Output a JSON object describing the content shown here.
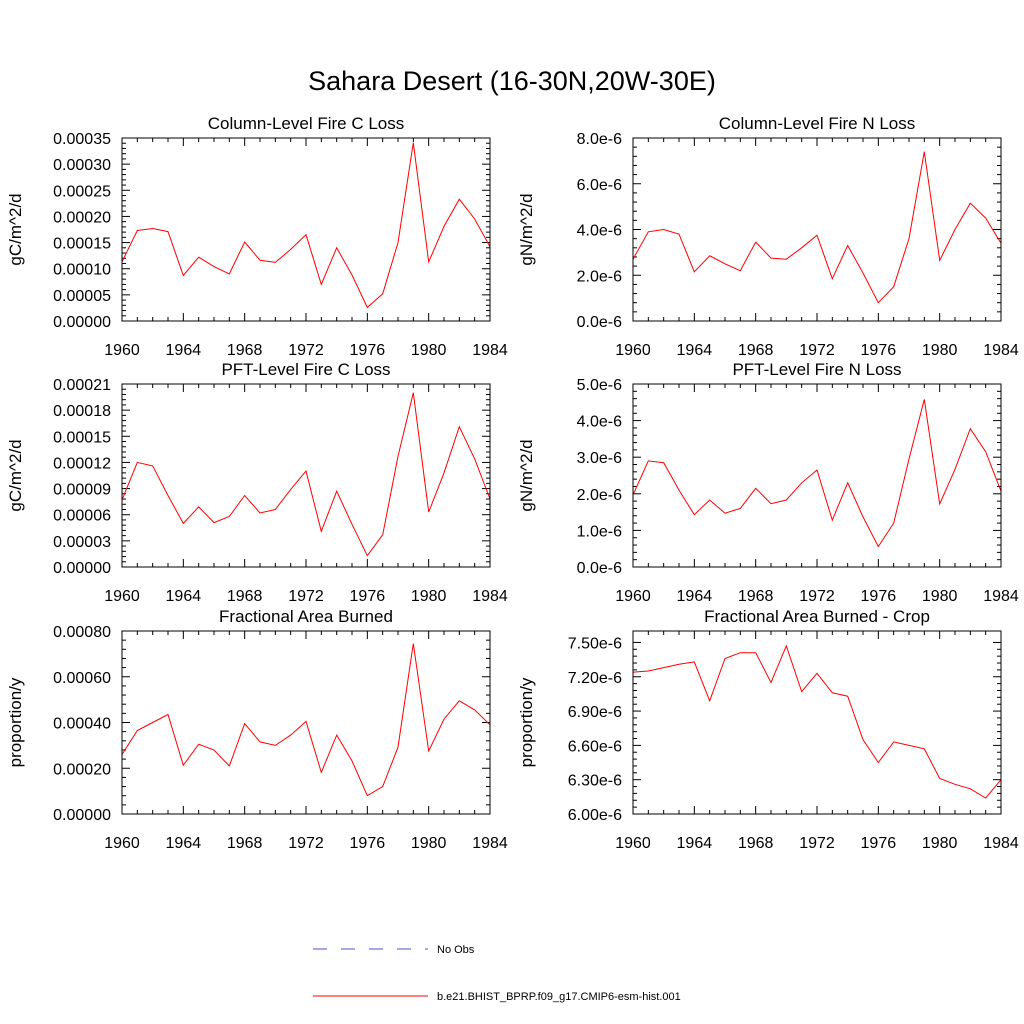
{
  "figure": {
    "title": "Sahara Desert (16-30N,20W-30E)",
    "line_color": "#ff0000",
    "obs_color": "#4a52c8",
    "legend": {
      "obs_label": "No Obs",
      "model_label": "b.e21.BHIST_BPRP.f09_g17.CMIP6-esm-hist.001"
    }
  },
  "chart_data": [
    {
      "type": "line",
      "title": "Column-Level Fire C Loss",
      "ylabel": "gC/m^2/d",
      "xlim": [
        1960,
        1984
      ],
      "ylim": [
        0,
        0.00035
      ],
      "yticks": [
        0,
        5e-05,
        0.0001,
        0.00015,
        0.0002,
        0.00025,
        0.0003,
        0.00035
      ],
      "ytick_labels": [
        "0.00000",
        "0.00005",
        "0.00010",
        "0.00015",
        "0.00020",
        "0.00025",
        "0.00030",
        "0.00035"
      ],
      "xticks": [
        1960,
        1964,
        1968,
        1972,
        1976,
        1980,
        1984
      ],
      "x": [
        1960,
        1961,
        1962,
        1963,
        1964,
        1965,
        1966,
        1967,
        1968,
        1969,
        1970,
        1971,
        1972,
        1973,
        1974,
        1975,
        1976,
        1977,
        1978,
        1979,
        1980,
        1981,
        1982,
        1983,
        1984
      ],
      "series": [
        {
          "values": [
            0.000113,
            0.000173,
            0.000177,
            0.000171,
            8.7e-05,
            0.000122,
            0.000104,
            9e-05,
            0.000151,
            0.000116,
            0.000112,
            0.000137,
            0.000165,
            7e-05,
            0.00014,
            8.8e-05,
            2.6e-05,
            5.2e-05,
            0.00015,
            0.000341,
            0.000113,
            0.000181,
            0.000233,
            0.000195,
            0.000142
          ]
        }
      ]
    },
    {
      "type": "line",
      "title": "Column-Level Fire N Loss",
      "ylabel": "gN/m^2/d",
      "xlim": [
        1960,
        1984
      ],
      "ylim": [
        0,
        8e-06
      ],
      "yticks": [
        0,
        2e-06,
        4e-06,
        6e-06,
        8e-06
      ],
      "ytick_labels": [
        "0.0e-6",
        "2.0e-6",
        "4.0e-6",
        "6.0e-6",
        "8.0e-6"
      ],
      "xticks": [
        1960,
        1964,
        1968,
        1972,
        1976,
        1980,
        1984
      ],
      "x": [
        1960,
        1961,
        1962,
        1963,
        1964,
        1965,
        1966,
        1967,
        1968,
        1969,
        1970,
        1971,
        1972,
        1973,
        1974,
        1975,
        1976,
        1977,
        1978,
        1979,
        1980,
        1981,
        1982,
        1983,
        1984
      ],
      "series": [
        {
          "values": [
            2.7e-06,
            3.9e-06,
            4e-06,
            3.8e-06,
            2.15e-06,
            2.85e-06,
            2.5e-06,
            2.2e-06,
            3.45e-06,
            2.75e-06,
            2.7e-06,
            3.2e-06,
            3.75e-06,
            1.85e-06,
            3.3e-06,
            2.1e-06,
            8e-07,
            1.5e-06,
            3.6e-06,
            7.4e-06,
            2.65e-06,
            4e-06,
            5.15e-06,
            4.5e-06,
            3.4e-06
          ]
        }
      ]
    },
    {
      "type": "line",
      "title": "PFT-Level Fire C Loss",
      "ylabel": "gC/m^2/d",
      "xlim": [
        1960,
        1984
      ],
      "ylim": [
        0,
        0.00021
      ],
      "yticks": [
        0,
        3e-05,
        6e-05,
        9e-05,
        0.00012,
        0.00015,
        0.00018,
        0.00021
      ],
      "ytick_labels": [
        "0.00000",
        "0.00003",
        "0.00006",
        "0.00009",
        "0.00012",
        "0.00015",
        "0.00018",
        "0.00021"
      ],
      "xticks": [
        1960,
        1964,
        1968,
        1972,
        1976,
        1980,
        1984
      ],
      "x": [
        1960,
        1961,
        1962,
        1963,
        1964,
        1965,
        1966,
        1967,
        1968,
        1969,
        1970,
        1971,
        1972,
        1973,
        1974,
        1975,
        1976,
        1977,
        1978,
        1979,
        1980,
        1981,
        1982,
        1983,
        1984
      ],
      "series": [
        {
          "values": [
            7.7e-05,
            0.00012,
            0.000116,
            8.2e-05,
            5e-05,
            6.9e-05,
            5.1e-05,
            5.8e-05,
            8.2e-05,
            6.2e-05,
            6.6e-05,
            8.9e-05,
            0.00011,
            4.1e-05,
            8.7e-05,
            4.9e-05,
            1.3e-05,
            3.7e-05,
            0.000127,
            0.0002,
            6.3e-05,
            0.000108,
            0.000161,
            0.000124,
            7.8e-05
          ]
        }
      ]
    },
    {
      "type": "line",
      "title": "PFT-Level Fire N Loss",
      "ylabel": "gN/m^2/d",
      "xlim": [
        1960,
        1984
      ],
      "ylim": [
        0,
        5e-06
      ],
      "yticks": [
        0,
        1e-06,
        2e-06,
        3e-06,
        4e-06,
        5e-06
      ],
      "ytick_labels": [
        "0.0e-6",
        "1.0e-6",
        "2.0e-6",
        "3.0e-6",
        "4.0e-6",
        "5.0e-6"
      ],
      "xticks": [
        1960,
        1964,
        1968,
        1972,
        1976,
        1980,
        1984
      ],
      "x": [
        1960,
        1961,
        1962,
        1963,
        1964,
        1965,
        1966,
        1967,
        1968,
        1969,
        1970,
        1971,
        1972,
        1973,
        1974,
        1975,
        1976,
        1977,
        1978,
        1979,
        1980,
        1981,
        1982,
        1983,
        1984
      ],
      "series": [
        {
          "values": [
            1.97e-06,
            2.9e-06,
            2.85e-06,
            2.1e-06,
            1.43e-06,
            1.83e-06,
            1.47e-06,
            1.6e-06,
            2.15e-06,
            1.73e-06,
            1.83e-06,
            2.3e-06,
            2.65e-06,
            1.28e-06,
            2.3e-06,
            1.37e-06,
            5.6e-07,
            1.2e-06,
            2.95e-06,
            4.58e-06,
            1.72e-06,
            2.67e-06,
            3.78e-06,
            3.15e-06,
            2.07e-06
          ]
        }
      ]
    },
    {
      "type": "line",
      "title": "Fractional Area Burned",
      "ylabel": "proportion/y",
      "xlim": [
        1960,
        1984
      ],
      "ylim": [
        0,
        0.0008
      ],
      "yticks": [
        0,
        0.0002,
        0.0004,
        0.0006,
        0.0008
      ],
      "ytick_labels": [
        "0.00000",
        "0.00020",
        "0.00040",
        "0.00060",
        "0.00080"
      ],
      "xticks": [
        1960,
        1964,
        1968,
        1972,
        1976,
        1980,
        1984
      ],
      "x": [
        1960,
        1961,
        1962,
        1963,
        1964,
        1965,
        1966,
        1967,
        1968,
        1969,
        1970,
        1971,
        1972,
        1973,
        1974,
        1975,
        1976,
        1977,
        1978,
        1979,
        1980,
        1981,
        1982,
        1983,
        1984
      ],
      "series": [
        {
          "values": [
            0.00026,
            0.000365,
            0.0004,
            0.000435,
            0.000213,
            0.000305,
            0.00028,
            0.00021,
            0.000395,
            0.000315,
            0.0003,
            0.000345,
            0.000405,
            0.000182,
            0.000345,
            0.000232,
            8e-05,
            0.00012,
            0.000292,
            0.000745,
            0.000275,
            0.000415,
            0.000495,
            0.000455,
            0.00039
          ]
        }
      ]
    },
    {
      "type": "line",
      "title": "Fractional Area Burned - Crop",
      "ylabel": "proportion/y",
      "xlim": [
        1960,
        1984
      ],
      "ylim": [
        6e-06,
        7.6e-06
      ],
      "yticks": [
        6e-06,
        6.3e-06,
        6.6e-06,
        6.9e-06,
        7.2e-06,
        7.5e-06
      ],
      "ytick_labels": [
        "6.00e-6",
        "6.30e-6",
        "6.60e-6",
        "6.90e-6",
        "7.20e-6",
        "7.50e-6"
      ],
      "xticks": [
        1960,
        1964,
        1968,
        1972,
        1976,
        1980,
        1984
      ],
      "x": [
        1960,
        1961,
        1962,
        1963,
        1964,
        1965,
        1966,
        1967,
        1968,
        1969,
        1970,
        1971,
        1972,
        1973,
        1974,
        1975,
        1976,
        1977,
        1978,
        1979,
        1980,
        1981,
        1982,
        1983,
        1984
      ],
      "series": [
        {
          "values": [
            7.24e-06,
            7.25e-06,
            7.28e-06,
            7.31e-06,
            7.33e-06,
            6.99e-06,
            7.36e-06,
            7.41e-06,
            7.41e-06,
            7.15e-06,
            7.47e-06,
            7.07e-06,
            7.23e-06,
            7.06e-06,
            7.03e-06,
            6.65e-06,
            6.45e-06,
            6.63e-06,
            6.6e-06,
            6.57e-06,
            6.31e-06,
            6.26e-06,
            6.22e-06,
            6.14e-06,
            6.3e-06
          ]
        }
      ]
    }
  ]
}
